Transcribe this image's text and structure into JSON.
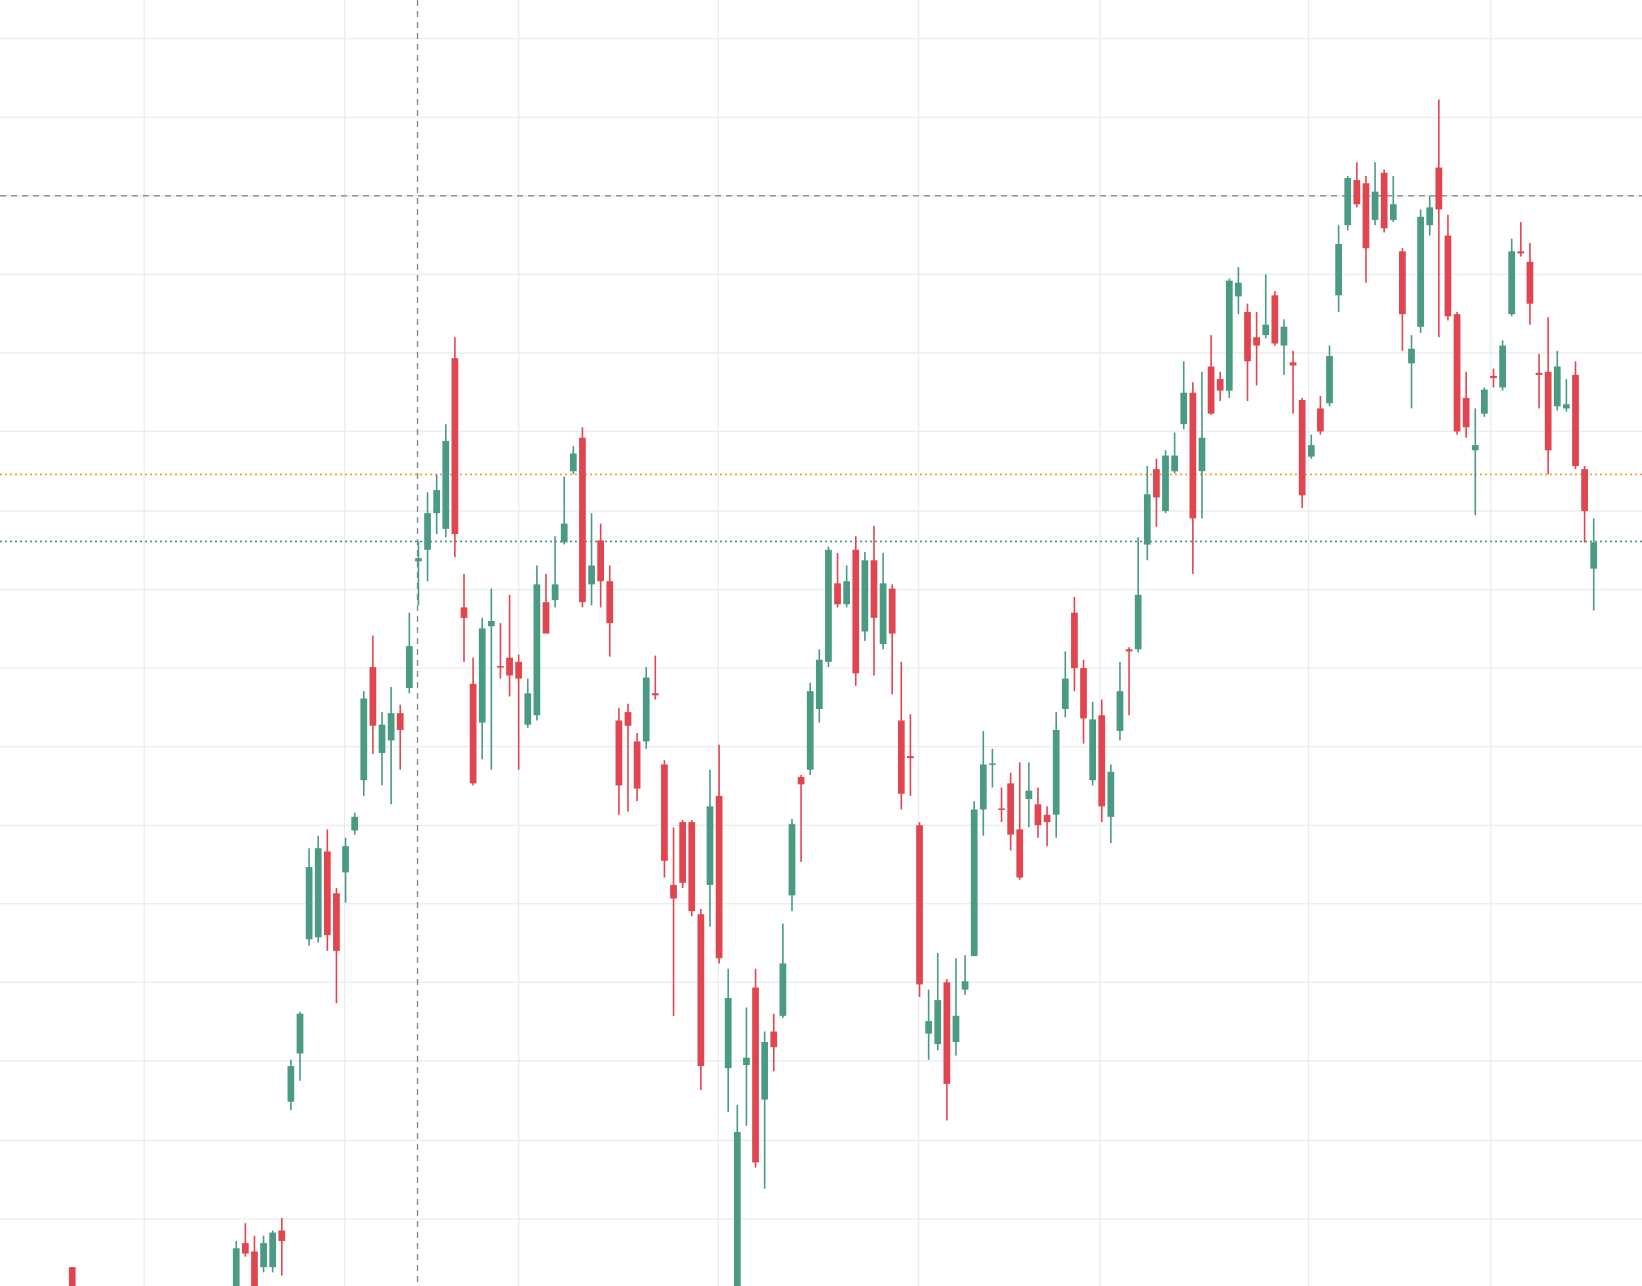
{
  "chart_data": {
    "type": "candlestick",
    "up_color": "#4a9a84",
    "down_color": "#e0464f",
    "grid": true,
    "grid_color": "#ececec",
    "xlim": [
      -7.93,
      172.3
    ],
    "ylim": [
      0,
      1228
    ],
    "xticks": [
      7.9,
      29.9,
      49,
      70.9,
      92.9,
      112.8,
      135.7,
      155.7
    ],
    "yticks": [
      1191,
      1116,
      1041,
      966,
      891,
      816,
      740,
      665,
      590,
      515,
      440,
      365,
      290,
      215,
      139,
      64
    ],
    "crosshair": {
      "x": 37.9,
      "y": 1041,
      "color": "#8a8a8a"
    },
    "price_lines": [
      {
        "value": 775,
        "color": "#f0a030"
      },
      {
        "value": 711,
        "color": "#3f9b87"
      }
    ],
    "x": [
      0,
      18,
      19,
      20,
      21,
      22,
      23,
      24,
      25,
      26,
      27,
      28,
      29,
      30,
      31,
      32,
      33,
      34,
      35,
      36,
      37,
      38,
      39,
      40,
      41,
      42,
      43,
      44,
      45,
      46,
      47,
      48,
      49,
      50,
      51,
      52,
      53,
      54,
      55,
      56,
      57,
      58,
      59,
      60,
      61,
      62,
      63,
      64,
      65,
      66,
      67,
      68,
      69,
      70,
      71,
      72,
      73,
      74,
      75,
      76,
      77,
      78,
      79,
      80,
      81,
      82,
      83,
      84,
      85,
      86,
      87,
      88,
      89,
      90,
      91,
      92,
      93,
      94,
      95,
      96,
      97,
      98,
      99,
      100,
      101,
      102,
      103,
      104,
      105,
      106,
      107,
      108,
      109,
      110,
      111,
      112,
      113,
      114,
      115,
      116,
      117,
      118,
      119,
      120,
      121,
      122,
      123,
      124,
      125,
      126,
      127,
      128,
      129,
      130,
      131,
      132,
      133,
      134,
      135,
      136,
      137,
      138,
      139,
      140,
      141,
      142,
      143,
      144,
      145,
      146,
      147,
      148,
      149,
      150,
      151,
      152,
      153,
      154,
      155,
      156,
      157,
      158,
      159,
      160,
      161,
      162,
      163,
      164,
      165,
      166,
      167
    ],
    "open": [
      18,
      0,
      41,
      33,
      18,
      18,
      53,
      176,
      222,
      331,
      333,
      415,
      375,
      395,
      435,
      483,
      591,
      509,
      521,
      547,
      571,
      692,
      703,
      738,
      723,
      886,
      648,
      575,
      538,
      630,
      592,
      600,
      596,
      536,
      545,
      653,
      655,
      710,
      778,
      810,
      670,
      712,
      673,
      540,
      548,
      520,
      520,
      566,
      498,
      383,
      443,
      443,
      355,
      383,
      468,
      208,
      0,
      211,
      285,
      178,
      243,
      258,
      373,
      486,
      493,
      551,
      596,
      671,
      651,
      703,
      625,
      693,
      613,
      666,
      540,
      506,
      440,
      241,
      231,
      290,
      233,
      283,
      315,
      455,
      498,
      456,
      480,
      436,
      465,
      460,
      450,
      450,
      551,
      643,
      590,
      483,
      545,
      448,
      530,
      608,
      608,
      708,
      780,
      740,
      778,
      823,
      853,
      778,
      878,
      866,
      855,
      945,
      930,
      906,
      908,
      946,
      898,
      882,
      846,
      792,
      838,
      843,
      946,
      1013,
      1056,
      1053,
      1018,
      1063,
      1018,
      988,
      881,
      916,
      1013,
      1068,
      1003,
      928,
      848,
      798,
      833,
      869,
      858,
      928,
      988,
      978,
      872,
      873,
      840,
      838,
      870,
      780,
      685
    ],
    "high": [
      18,
      43,
      60,
      48,
      48,
      53,
      65,
      216,
      262,
      418,
      430,
      436,
      380,
      428,
      452,
      568,
      621,
      548,
      572,
      555,
      643,
      711,
      758,
      775,
      823,
      906,
      680,
      600,
      638,
      666,
      633,
      660,
      603,
      580,
      688,
      680,
      716,
      773,
      802,
      820,
      738,
      728,
      688,
      552,
      556,
      528,
      591,
      602,
      502,
      438,
      445,
      445,
      360,
      493,
      517,
      303,
      173,
      266,
      303,
      243,
      260,
      346,
      446,
      488,
      576,
      608,
      706,
      700,
      688,
      716,
      701,
      726,
      700,
      670,
      596,
      546,
      443,
      283,
      318,
      293,
      313,
      316,
      463,
      530,
      513,
      476,
      490,
      500,
      500,
      476,
      458,
      548,
      606,
      658,
      598,
      558,
      560,
      498,
      596,
      610,
      715,
      783,
      790,
      798,
      815,
      883,
      863,
      873,
      908,
      873,
      962,
      973,
      938,
      930,
      966,
      950,
      923,
      893,
      848,
      813,
      850,
      898,
      1013,
      1060,
      1073,
      1060,
      1073,
      1066,
      1060,
      991,
      908,
      1028,
      1041,
      1133,
      1023,
      930,
      873,
      838,
      858,
      876,
      903,
      1000,
      1016,
      996,
      890,
      925,
      893,
      866,
      883,
      783,
      733
    ],
    "low": [
      -12,
      -12,
      28,
      -12,
      13,
      13,
      10,
      168,
      196,
      325,
      328,
      320,
      270,
      366,
      431,
      468,
      508,
      478,
      460,
      493,
      566,
      650,
      673,
      718,
      715,
      696,
      596,
      478,
      503,
      493,
      580,
      563,
      493,
      533,
      540,
      623,
      648,
      708,
      775,
      648,
      650,
      648,
      601,
      450,
      453,
      463,
      513,
      560,
      390,
      258,
      380,
      353,
      187,
      343,
      308,
      166,
      -12,
      153,
      113,
      93,
      205,
      256,
      358,
      405,
      488,
      538,
      591,
      648,
      648,
      573,
      616,
      583,
      608,
      565,
      455,
      468,
      276,
      216,
      225,
      158,
      220,
      278,
      315,
      430,
      476,
      443,
      416,
      388,
      438,
      428,
      420,
      428,
      543,
      568,
      518,
      478,
      443,
      423,
      521,
      545,
      605,
      693,
      725,
      738,
      776,
      818,
      680,
      733,
      832,
      845,
      848,
      928,
      845,
      860,
      905,
      898,
      870,
      833,
      743,
      790,
      813,
      840,
      930,
      1008,
      1030,
      958,
      1013,
      1006,
      1016,
      893,
      838,
      910,
      1003,
      906,
      922,
      813,
      810,
      736,
      830,
      858,
      855,
      926,
      983,
      918,
      838,
      775,
      836,
      835,
      780,
      710,
      645
    ],
    "close": [
      -12,
      36,
      31,
      -2,
      41,
      51,
      43,
      210,
      260,
      400,
      418,
      335,
      320,
      420,
      448,
      561,
      535,
      536,
      547,
      531,
      611,
      695,
      738,
      760,
      807,
      718,
      638,
      480,
      628,
      635,
      591,
      583,
      580,
      566,
      670,
      623,
      670,
      728,
      795,
      653,
      688,
      673,
      633,
      478,
      535,
      475,
      581,
      564,
      406,
      370,
      385,
      358,
      210,
      458,
      313,
      275,
      147,
      218,
      118,
      233,
      228,
      308,
      441,
      479,
      568,
      598,
      703,
      651,
      673,
      585,
      693,
      638,
      671,
      623,
      470,
      504,
      288,
      253,
      273,
      193,
      258,
      291,
      455,
      498,
      499,
      455,
      431,
      390,
      473,
      440,
      443,
      531,
      580,
      590,
      542,
      541,
      458,
      491,
      568,
      606,
      660,
      756,
      753,
      793,
      793,
      853,
      733,
      810,
      833,
      855,
      960,
      958,
      883,
      898,
      918,
      900,
      916,
      879,
      755,
      803,
      816,
      888,
      995,
      1058,
      1033,
      991,
      1045,
      1010,
      1033,
      928,
      895,
      1021,
      1030,
      1028,
      926,
      816,
      820,
      803,
      856,
      867,
      898,
      988,
      986,
      938,
      870,
      798,
      878,
      842,
      783,
      740,
      710
    ]
  }
}
